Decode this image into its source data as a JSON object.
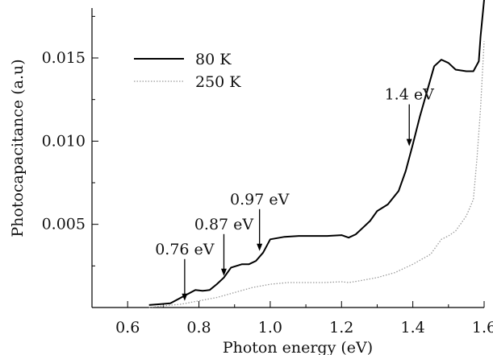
{
  "chart_data": {
    "type": "line",
    "xlabel": "Photon energy (eV)",
    "ylabel": "Photocapacitance (a.u)",
    "xlim": [
      0.5,
      1.6
    ],
    "ylim": [
      0.0,
      0.018
    ],
    "x_ticks": [
      {
        "value": 0.6,
        "label": "0.6"
      },
      {
        "value": 0.8,
        "label": "0.8"
      },
      {
        "value": 1.0,
        "label": "1.0"
      },
      {
        "value": 1.2,
        "label": "1.2"
      },
      {
        "value": 1.4,
        "label": "1.4"
      },
      {
        "value": 1.6,
        "label": "1.6"
      }
    ],
    "y_ticks": [
      {
        "value": 0.005,
        "label": "0.005"
      },
      {
        "value": 0.01,
        "label": "0.010"
      },
      {
        "value": 0.015,
        "label": "0.015"
      }
    ],
    "legend_position": "top-left",
    "series": [
      {
        "name": "80 K",
        "style": "solid",
        "color": "#000000",
        "x": [
          0.66,
          0.69,
          0.72,
          0.75,
          0.79,
          0.81,
          0.83,
          0.85,
          0.87,
          0.89,
          0.92,
          0.94,
          0.96,
          0.98,
          1.0,
          1.04,
          1.08,
          1.12,
          1.16,
          1.2,
          1.22,
          1.24,
          1.26,
          1.28,
          1.3,
          1.33,
          1.36,
          1.38,
          1.4,
          1.42,
          1.44,
          1.46,
          1.48,
          1.5,
          1.52,
          1.55,
          1.57,
          1.585,
          1.59,
          1.6
        ],
        "y": [
          0.00015,
          0.0002,
          0.00025,
          0.0006,
          0.00105,
          0.001,
          0.00105,
          0.0014,
          0.0018,
          0.0024,
          0.0026,
          0.0026,
          0.0028,
          0.0033,
          0.0041,
          0.00425,
          0.0043,
          0.0043,
          0.0043,
          0.00435,
          0.0042,
          0.0044,
          0.0048,
          0.0052,
          0.0058,
          0.0062,
          0.007,
          0.0082,
          0.0098,
          0.0115,
          0.013,
          0.0145,
          0.0149,
          0.0147,
          0.0143,
          0.0142,
          0.0142,
          0.0148,
          0.0163,
          0.0185
        ]
      },
      {
        "name": "250 K",
        "style": "dotted",
        "color": "#9a9a9a",
        "x": [
          0.66,
          0.7,
          0.75,
          0.8,
          0.85,
          0.9,
          0.95,
          1.0,
          1.05,
          1.1,
          1.15,
          1.2,
          1.22,
          1.25,
          1.3,
          1.35,
          1.4,
          1.45,
          1.48,
          1.5,
          1.52,
          1.55,
          1.57,
          1.58,
          1.59,
          1.6
        ],
        "y": [
          0.0,
          0.0001,
          0.0002,
          0.0004,
          0.0006,
          0.0009,
          0.0012,
          0.0014,
          0.0015,
          0.0015,
          0.0015,
          0.00155,
          0.0015,
          0.0016,
          0.0018,
          0.0021,
          0.0026,
          0.0032,
          0.0041,
          0.0043,
          0.0046,
          0.0055,
          0.0065,
          0.009,
          0.012,
          0.016
        ]
      }
    ],
    "annotations": [
      {
        "text": "0.76 eV",
        "x": 0.76,
        "y": 0.0003
      },
      {
        "text": "0.87 eV",
        "x": 0.87,
        "y": 0.0018
      },
      {
        "text": "0.97 eV",
        "x": 0.97,
        "y": 0.0033
      },
      {
        "text": "1.4 eV",
        "x": 1.39,
        "y": 0.0096
      }
    ]
  }
}
